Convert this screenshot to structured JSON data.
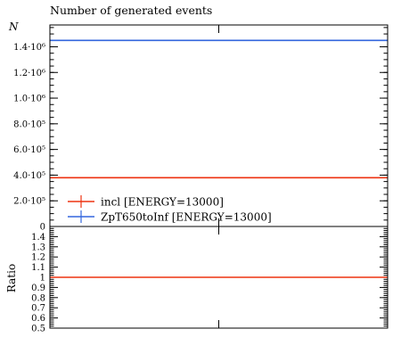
{
  "colors": {
    "incl": "#ee3311",
    "zpt": "#3366dd",
    "ratio": "#ee3311"
  },
  "chart_data": [
    {
      "type": "line",
      "title": "Number of generated events",
      "ylabel": "N",
      "ylim": [
        0,
        1570000
      ],
      "yticks": [
        {
          "value": 0,
          "label": "0"
        },
        {
          "value": 200000,
          "label": "2.0·10⁵"
        },
        {
          "value": 400000,
          "label": "4.0·10⁵"
        },
        {
          "value": 600000,
          "label": "6.0·10⁵"
        },
        {
          "value": 800000,
          "label": "8.0·10⁵"
        },
        {
          "value": 1000000,
          "label": "1.0·10⁶"
        },
        {
          "value": 1200000,
          "label": "1.2·10⁶"
        },
        {
          "value": 1400000,
          "label": "1.4·10⁶"
        }
      ],
      "legend_position": "bottom-left",
      "series": [
        {
          "name": "incl [ENERGY=13000]",
          "color": "#ee3311",
          "value": 380000
        },
        {
          "name": "ZpT650toInf [ENERGY=13000]",
          "color": "#3366dd",
          "value": 1450000
        }
      ]
    },
    {
      "type": "line",
      "ylabel": "Ratio",
      "ylim": [
        0.5,
        1.5
      ],
      "yticks": [
        {
          "value": 0.5,
          "label": "0.5"
        },
        {
          "value": 0.6,
          "label": "0.6"
        },
        {
          "value": 0.7,
          "label": "0.7"
        },
        {
          "value": 0.8,
          "label": "0.8"
        },
        {
          "value": 0.9,
          "label": "0.9"
        },
        {
          "value": 1.0,
          "label": "1"
        },
        {
          "value": 1.1,
          "label": "1.1"
        },
        {
          "value": 1.2,
          "label": "1.2"
        },
        {
          "value": 1.3,
          "label": "1.3"
        },
        {
          "value": 1.4,
          "label": "1.4"
        }
      ],
      "series": [
        {
          "color": "#ee3311",
          "value": 1.0
        }
      ]
    }
  ]
}
